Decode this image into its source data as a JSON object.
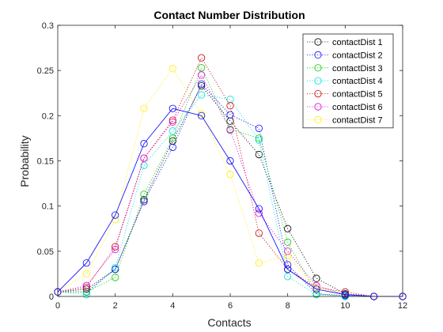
{
  "chart_data": {
    "type": "line",
    "title": "Contact Number Distribution",
    "xlabel": "Contacts",
    "ylabel": "Probability",
    "xlim": [
      0,
      12
    ],
    "ylim": [
      0,
      0.3
    ],
    "xticks": [
      0,
      2,
      4,
      6,
      8,
      10,
      12
    ],
    "yticks": [
      0,
      0.05,
      0.1,
      0.15,
      0.2,
      0.25,
      0.3
    ],
    "ytick_labels": [
      "0",
      "0.05",
      "0.1",
      "0.15",
      "0.2",
      "0.25",
      "0.3"
    ],
    "grid": false,
    "legend_position": "top-right",
    "marker": "circle",
    "series": [
      {
        "name": "contactDist 1",
        "color": "#000000",
        "line": "dotted",
        "x": [
          0,
          1,
          2,
          3,
          4,
          5,
          6,
          7,
          8,
          9,
          10,
          11,
          12
        ],
        "values": [
          0.005,
          0.008,
          0.03,
          0.107,
          0.172,
          0.233,
          0.194,
          0.157,
          0.075,
          0.02,
          0.003,
          0.0,
          0.0
        ]
      },
      {
        "name": "contactDist 2",
        "color": "#0000ff",
        "line": "dotted",
        "x": [
          0,
          1,
          2,
          3,
          4,
          5,
          6,
          7,
          8,
          9,
          10,
          11,
          12
        ],
        "values": [
          0.005,
          0.005,
          0.03,
          0.105,
          0.165,
          0.235,
          0.201,
          0.186,
          0.035,
          0.003,
          0.001,
          0.0,
          0.0
        ]
      },
      {
        "name": "contactDist 3",
        "color": "#00cc00",
        "line": "dotted",
        "x": [
          0,
          1,
          2,
          3,
          4,
          5,
          6,
          7,
          8,
          9,
          10,
          11,
          12
        ],
        "values": [
          0.005,
          0.005,
          0.021,
          0.113,
          0.175,
          0.253,
          0.185,
          0.175,
          0.06,
          0.003,
          0.0,
          0.0,
          0.0
        ]
      },
      {
        "name": "contactDist 4",
        "color": "#00dddd",
        "line": "dotted",
        "x": [
          0,
          1,
          2,
          3,
          4,
          5,
          6,
          7,
          8,
          9,
          10,
          11,
          12
        ],
        "values": [
          0.005,
          0.002,
          0.032,
          0.145,
          0.183,
          0.223,
          0.218,
          0.173,
          0.022,
          0.002,
          0.0,
          0.0,
          0.0
        ]
      },
      {
        "name": "contactDist 5",
        "color": "#cc0000",
        "line": "dotted",
        "x": [
          0,
          1,
          2,
          3,
          4,
          5,
          6,
          7,
          8,
          9,
          10,
          11,
          12
        ],
        "values": [
          0.005,
          0.01,
          0.055,
          0.153,
          0.195,
          0.264,
          0.211,
          0.07,
          0.03,
          0.01,
          0.005,
          0.0,
          0.0
        ]
      },
      {
        "name": "contactDist 6",
        "color": "#dd00dd",
        "line": "dotted",
        "x": [
          0,
          1,
          2,
          3,
          4,
          5,
          6,
          7,
          8,
          9,
          10,
          11,
          12
        ],
        "values": [
          0.005,
          0.012,
          0.052,
          0.153,
          0.193,
          0.245,
          0.184,
          0.092,
          0.05,
          0.012,
          0.002,
          0.0,
          0.0
        ]
      },
      {
        "name": "contactDist 7",
        "color": "#ffee00",
        "line": "dotted",
        "x": [
          0,
          1,
          2,
          3,
          4,
          5,
          6,
          7,
          8,
          9,
          10,
          11,
          12
        ],
        "values": [
          0.005,
          0.025,
          0.085,
          0.208,
          0.252,
          0.202,
          0.135,
          0.037,
          0.045,
          0.01,
          0.002,
          0.0,
          0.0
        ]
      },
      {
        "name": "",
        "color": "#0000ff",
        "line": "solid",
        "x": [
          0,
          1,
          2,
          3,
          4,
          5,
          6,
          7,
          8,
          9,
          10,
          11,
          12
        ],
        "values": [
          0.005,
          0.037,
          0.09,
          0.169,
          0.208,
          0.2,
          0.15,
          0.097,
          0.03,
          0.008,
          0.002,
          0.0,
          0.0
        ]
      }
    ]
  }
}
